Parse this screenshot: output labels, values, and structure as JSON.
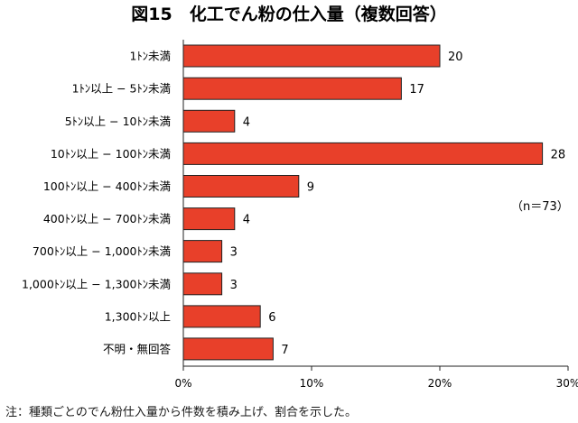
{
  "chart_data": {
    "type": "bar",
    "orientation": "horizontal",
    "title": "図15　化工でん粉の仕入量（複数回答）",
    "categories": [
      "1ﾄﾝ未満",
      "1ﾄﾝ以上 − 5ﾄﾝ未満",
      "5ﾄﾝ以上 − 10ﾄﾝ未満",
      "10ﾄﾝ以上 − 100ﾄﾝ未満",
      "100ﾄﾝ以上 − 400ﾄﾝ未満",
      "400ﾄﾝ以上 − 700ﾄﾝ未満",
      "700ﾄﾝ以上 − 1,000ﾄﾝ未満",
      "1,000ﾄﾝ以上 − 1,300ﾄﾝ未満",
      "1,300ﾄﾝ以上",
      "不明・無回答"
    ],
    "values": [
      20,
      17,
      4,
      28,
      9,
      4,
      3,
      3,
      6,
      7
    ],
    "n": 73,
    "xlim": [
      0,
      30
    ],
    "xticks": [
      "0%",
      "10%",
      "20%",
      "30%"
    ],
    "grid": false,
    "bar_color": "#e8402a"
  },
  "annotations": {
    "n_label": "（n＝73）"
  },
  "footnote": "注：種類ごとのでん粉仕入量から件数を積み上げ、割合を示した。"
}
